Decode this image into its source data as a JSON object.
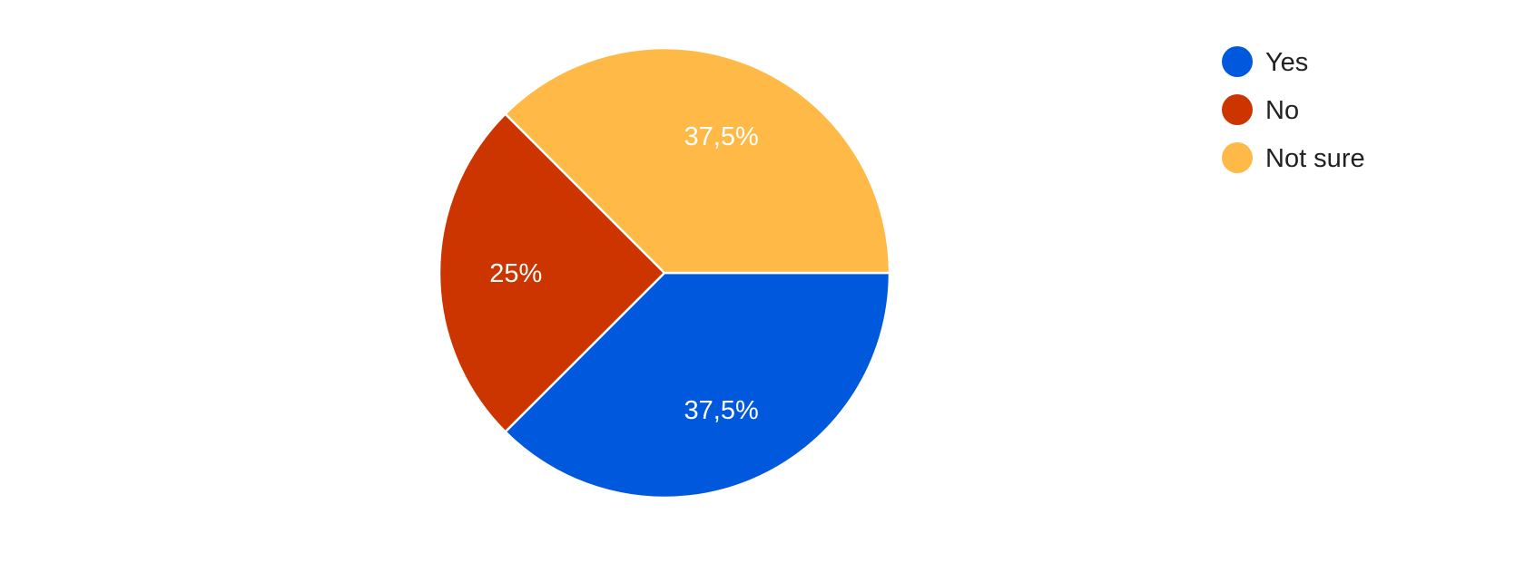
{
  "chart_data": {
    "type": "pie",
    "title": "",
    "legend_position": "right",
    "slices": [
      {
        "label": "Yes",
        "value": 37.5,
        "display": "37,5%",
        "color": "#0058dd"
      },
      {
        "label": "No",
        "value": 25,
        "display": "25%",
        "color": "#cc3500"
      },
      {
        "label": "Not sure",
        "value": 37.5,
        "display": "37,5%",
        "color": "#ffb946"
      }
    ]
  }
}
